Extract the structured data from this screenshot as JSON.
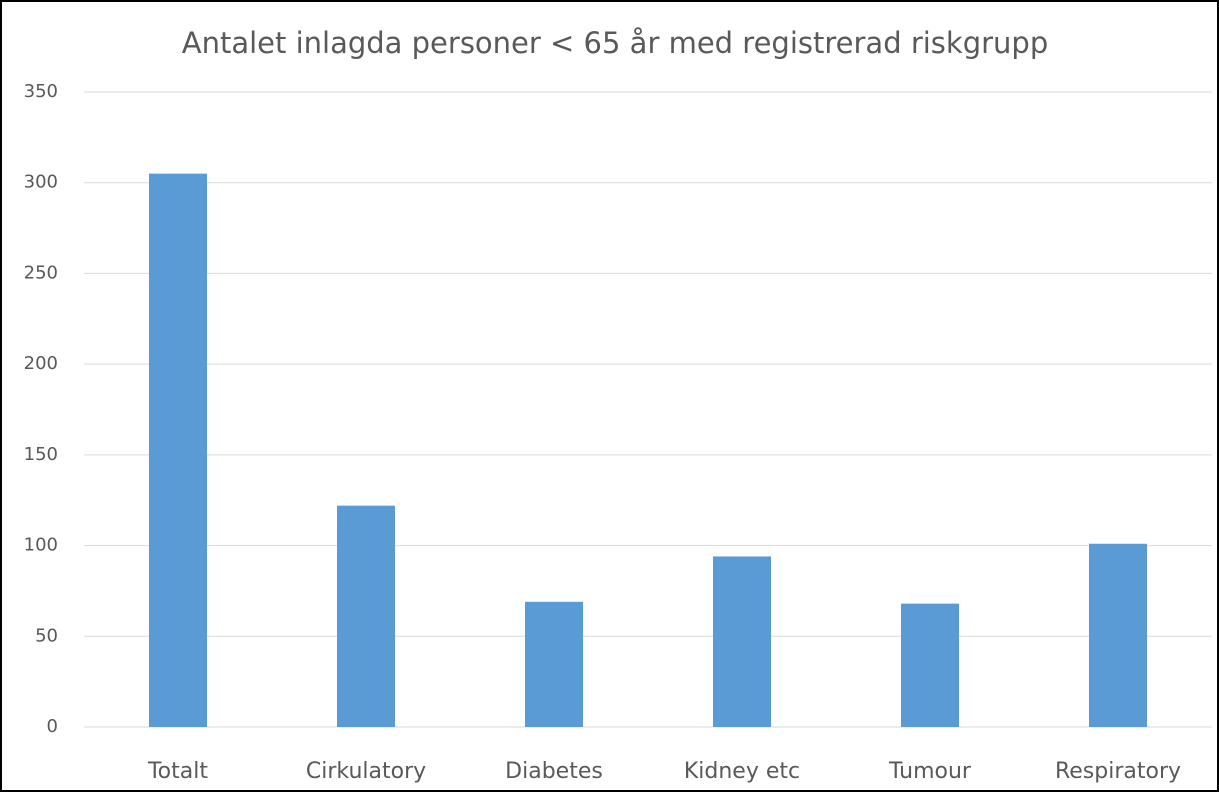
{
  "chart_data": {
    "type": "bar",
    "title": "Antalet inlagda personer < 65 år med registrerad riskgrupp",
    "categories": [
      "Totalt",
      "Cirkulatory",
      "Diabetes",
      "Kidney etc",
      "Tumour",
      "Respiratory"
    ],
    "values": [
      305,
      122,
      69,
      94,
      68,
      101
    ],
    "color": "#5b9bd5",
    "ylim": [
      0,
      350
    ],
    "yticks": [
      0,
      50,
      100,
      150,
      200,
      250,
      300,
      350
    ],
    "grid": true
  }
}
